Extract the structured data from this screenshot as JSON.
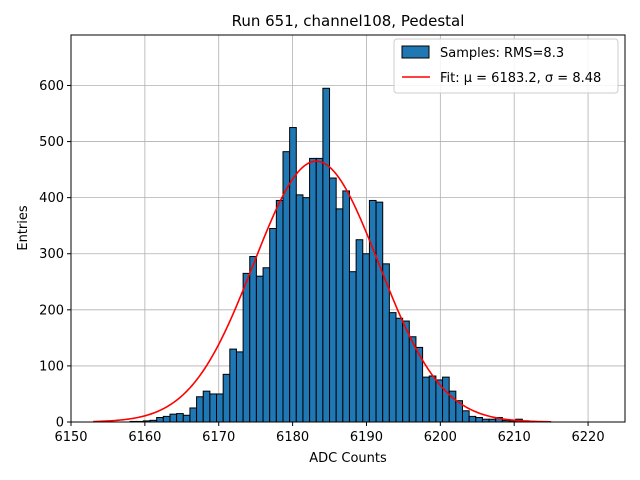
{
  "chart_data": {
    "type": "bar",
    "title": "Run 651, channel108, Pedestal",
    "xlabel": "ADC Counts",
    "ylabel": "Entries",
    "xlim": [
      6150,
      6225
    ],
    "ylim": [
      0,
      690
    ],
    "xticks": [
      6150,
      6160,
      6170,
      6180,
      6190,
      6200,
      6210,
      6220
    ],
    "yticks": [
      0,
      100,
      200,
      300,
      400,
      500,
      600
    ],
    "grid": true,
    "legend_position": "top-right",
    "colors": {
      "bar_fill": "#1f77b4",
      "bar_edge": "#000000",
      "fit_line": "#ff0000",
      "grid": "#b0b0b0"
    },
    "histogram": {
      "name": "Samples: RMS=8.3",
      "bin_width": 0.9,
      "bin_left_edges": [
        6157.1,
        6158.0,
        6158.9,
        6159.8,
        6160.7,
        6161.6,
        6162.5,
        6163.4,
        6164.3,
        6165.2,
        6166.1,
        6167.0,
        6167.9,
        6168.8,
        6169.7,
        6170.6,
        6171.5,
        6172.4,
        6173.3,
        6174.2,
        6175.1,
        6176.0,
        6176.9,
        6177.8,
        6178.7,
        6179.6,
        6180.5,
        6181.4,
        6182.3,
        6183.2,
        6184.1,
        6185.0,
        6185.9,
        6186.8,
        6187.7,
        6188.6,
        6189.5,
        6190.4,
        6191.3,
        6192.2,
        6193.1,
        6194.0,
        6194.9,
        6195.8,
        6196.7,
        6197.6,
        6198.5,
        6199.4,
        6200.3,
        6201.2,
        6202.1,
        6203.0,
        6203.9,
        6204.8,
        6205.7,
        6206.6,
        6207.5,
        6208.4,
        6209.3,
        6210.2,
        6211.1,
        6212.0,
        6212.9,
        6213.8
      ],
      "counts": [
        0,
        1,
        1,
        2,
        3,
        8,
        10,
        14,
        15,
        12,
        25,
        45,
        55,
        50,
        50,
        85,
        130,
        125,
        265,
        295,
        260,
        275,
        345,
        395,
        482,
        525,
        405,
        400,
        470,
        470,
        595,
        435,
        380,
        412,
        268,
        325,
        300,
        395,
        392,
        282,
        195,
        185,
        180,
        152,
        133,
        80,
        82,
        75,
        80,
        55,
        38,
        20,
        10,
        8,
        5,
        5,
        8,
        3,
        2,
        5,
        2,
        1,
        0,
        0
      ]
    },
    "fit": {
      "name": "Fit: μ = 6183.2, σ = 8.48",
      "type": "gaussian",
      "mu": 6183.2,
      "sigma": 8.48,
      "amplitude": 465,
      "x_range": [
        6153,
        6215
      ]
    }
  }
}
